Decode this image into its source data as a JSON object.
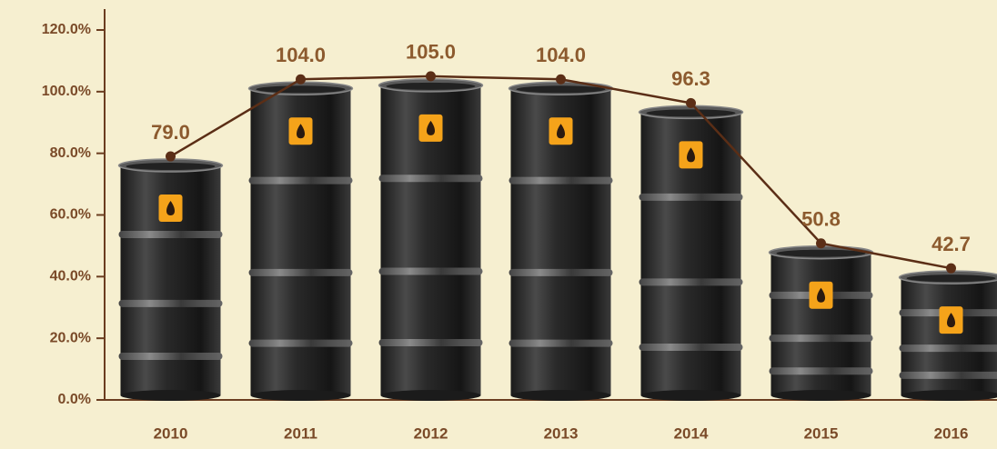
{
  "chart_data": {
    "type": "barrel-line",
    "categories": [
      "2010",
      "2011",
      "2012",
      "2013",
      "2014",
      "2015",
      "2016"
    ],
    "values": [
      79.0,
      104.0,
      105.0,
      104.0,
      96.3,
      50.8,
      42.7
    ],
    "value_labels": [
      "79.0",
      "104.0",
      "105.0",
      "104.0",
      "96.3",
      "50.8",
      "42.7"
    ],
    "color": "#5b2e16",
    "ylim": [
      0,
      120
    ],
    "yticks": [
      {
        "value": 0,
        "label": "0.0%"
      },
      {
        "value": 20,
        "label": "20.0%"
      },
      {
        "value": 40,
        "label": "40.0%"
      },
      {
        "value": 60,
        "label": "60.0%"
      },
      {
        "value": 80,
        "label": "80.0%"
      },
      {
        "value": 100,
        "label": "100.0%"
      },
      {
        "value": 120,
        "label": "120.0%"
      }
    ]
  }
}
